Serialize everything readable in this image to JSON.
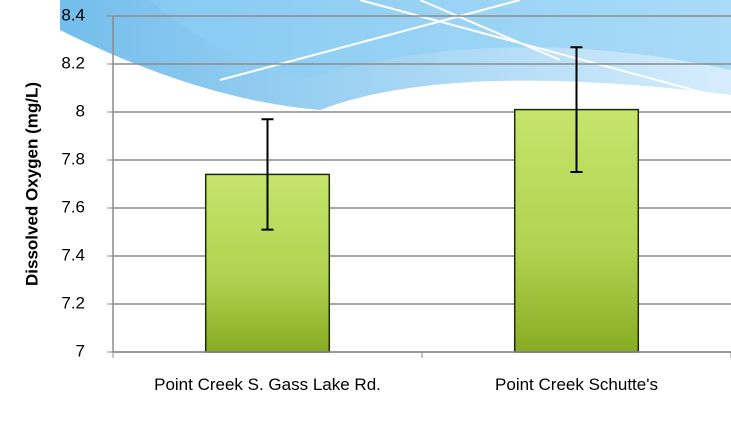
{
  "chart_data": {
    "type": "bar",
    "y_label": "Dissolved Oxygen (mg/L)",
    "categories": [
      "Point Creek S. Gass Lake Rd.",
      "Point Creek Schutte's"
    ],
    "values": [
      7.74,
      8.01
    ],
    "errors": [
      0.23,
      0.26
    ],
    "color": "#9bc63b",
    "ylim": [
      7,
      8.4
    ],
    "yticks": [
      7,
      7.2,
      7.4,
      7.6,
      7.8,
      8,
      8.2,
      8.4
    ],
    "grid": true
  }
}
